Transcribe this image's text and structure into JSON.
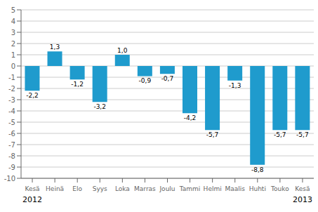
{
  "chart_data": {
    "type": "bar",
    "categories": [
      "Kesä",
      "Heinä",
      "Elo",
      "Syys",
      "Loka",
      "Marras",
      "Joulu",
      "Tammi",
      "Helmi",
      "Maalis",
      "Huhti",
      "Touko",
      "Kesä"
    ],
    "values": [
      -2.2,
      1.3,
      -1.2,
      -3.2,
      1.0,
      -0.9,
      -0.7,
      -4.2,
      -5.7,
      -1.3,
      -8.8,
      -5.7,
      -5.7
    ],
    "value_labels": [
      "-2,2",
      "1,3",
      "-1,2",
      "-3,2",
      "1,0",
      "-0,9",
      "-0,7",
      "-4,2",
      "-5,7",
      "-1,3",
      "-8,8",
      "-5,7",
      "-5,7"
    ],
    "color": "#1f9bcd",
    "ylim": [
      -10,
      5
    ],
    "yticks": [
      -10,
      -9,
      -8,
      -7,
      -6,
      -5,
      -4,
      -3,
      -2,
      -1,
      0,
      1,
      2,
      3,
      4,
      5
    ],
    "grid": true,
    "data_labels": true,
    "annotations": [
      {
        "text": "2012",
        "x": 0
      },
      {
        "text": "2013",
        "x": 12
      }
    ]
  }
}
